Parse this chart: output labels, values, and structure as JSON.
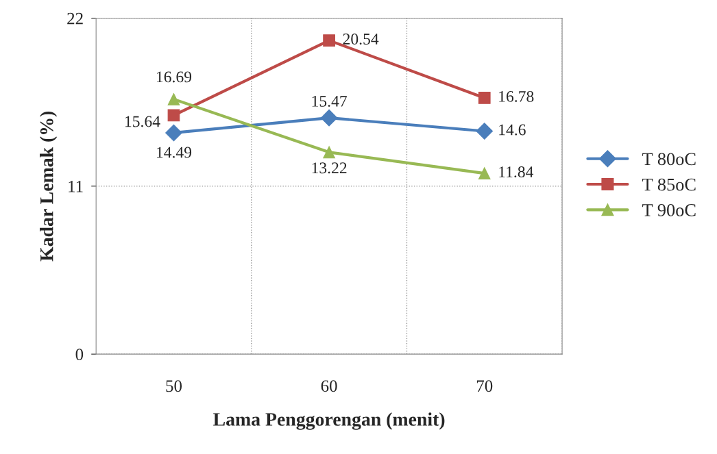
{
  "chart_data": {
    "type": "line",
    "xlabel": "Lama Penggorengan (menit)",
    "ylabel": "Kadar Lemak (%)",
    "categories": [
      "50",
      "60",
      "70"
    ],
    "series": [
      {
        "name": "T 80oC",
        "color": "#4a7ebb",
        "marker": "diamond",
        "values": [
          14.49,
          15.47,
          14.6
        ]
      },
      {
        "name": "T 85oC",
        "color": "#be4b48",
        "marker": "square",
        "values": [
          15.64,
          20.54,
          16.78
        ]
      },
      {
        "name": "T 90oC",
        "color": "#98b954",
        "marker": "triangle",
        "values": [
          16.69,
          13.22,
          11.84
        ]
      }
    ],
    "ylim": [
      0,
      22
    ],
    "yticks": [
      0,
      11,
      22
    ],
    "grid": true,
    "legend": "right",
    "data_labels": true,
    "line_style": "solid"
  }
}
